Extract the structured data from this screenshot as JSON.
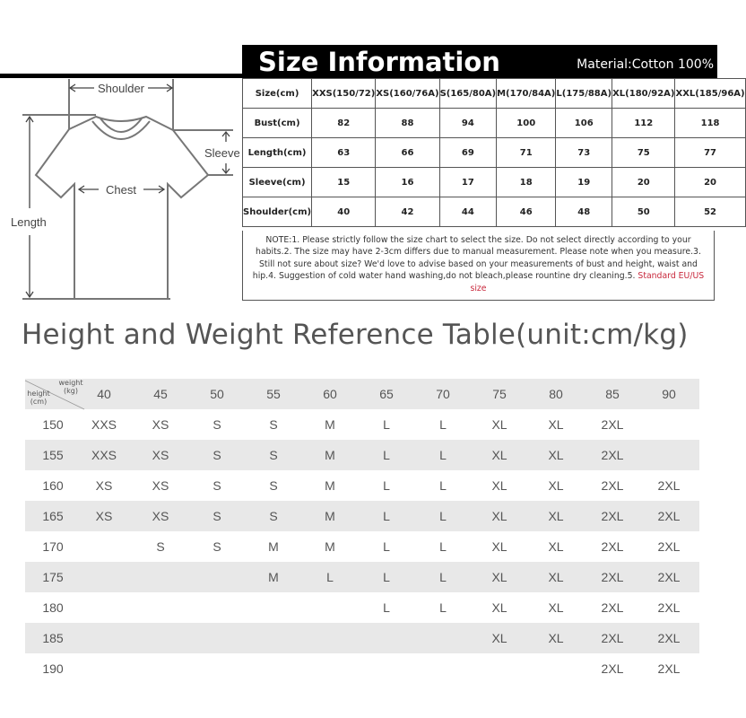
{
  "header": {
    "title": "Size Information",
    "material": "Material:Cotton 100%"
  },
  "diagram": {
    "labels": {
      "shoulder": "Shoulder",
      "chest": "Chest",
      "length": "Length",
      "sleeve": "Sleeve"
    }
  },
  "size_table": {
    "columns": [
      "Size(cm)",
      "XXS(150/72)",
      "XS(160/76A)",
      "S(165/80A)",
      "M(170/84A)",
      "L(175/88A)",
      "XL(180/92A)",
      "XXL(185/96A)"
    ],
    "rows": [
      [
        "Bust(cm)",
        "82",
        "88",
        "94",
        "100",
        "106",
        "112",
        "118"
      ],
      [
        "Length(cm)",
        "63",
        "66",
        "69",
        "71",
        "73",
        "75",
        "77"
      ],
      [
        "Sleeve(cm)",
        "15",
        "16",
        "17",
        "18",
        "19",
        "20",
        "20"
      ],
      [
        "Shoulder(cm)",
        "40",
        "42",
        "44",
        "46",
        "48",
        "50",
        "52"
      ]
    ],
    "note": "NOTE:1. Please strictly follow the size chart to select the size. Do not select directly according to your habits.2. The size may have 2-3cm differs due to manual measurement. Please note when you measure.3. Still not sure about size? We'd love to advise based on your measurements of bust and height, waist and hip.4. Suggestion of cold water hand washing,do not bleach,please rountine dry cleaning.5. ",
    "note_highlight": "Standard EU/US size",
    "highlight_color": "#c8283c"
  },
  "hw_table": {
    "title": "Height and Weight Reference Table(unit:cm/kg)",
    "corner_weight": "weight (kg)",
    "corner_height": "height (cm)",
    "weights": [
      "40",
      "45",
      "50",
      "55",
      "60",
      "65",
      "70",
      "75",
      "80",
      "85",
      "90"
    ],
    "rows": [
      {
        "height": "150",
        "sizes": [
          "XXS",
          "XS",
          "S",
          "S",
          "M",
          "L",
          "L",
          "XL",
          "XL",
          "2XL",
          ""
        ]
      },
      {
        "height": "155",
        "sizes": [
          "XXS",
          "XS",
          "S",
          "S",
          "M",
          "L",
          "L",
          "XL",
          "XL",
          "2XL",
          ""
        ]
      },
      {
        "height": "160",
        "sizes": [
          "XS",
          "XS",
          "S",
          "S",
          "M",
          "L",
          "L",
          "XL",
          "XL",
          "2XL",
          "2XL"
        ]
      },
      {
        "height": "165",
        "sizes": [
          "XS",
          "XS",
          "S",
          "S",
          "M",
          "L",
          "L",
          "XL",
          "XL",
          "2XL",
          "2XL"
        ]
      },
      {
        "height": "170",
        "sizes": [
          "",
          "S",
          "S",
          "M",
          "M",
          "L",
          "L",
          "XL",
          "XL",
          "2XL",
          "2XL"
        ]
      },
      {
        "height": "175",
        "sizes": [
          "",
          "",
          "",
          "M",
          "L",
          "L",
          "L",
          "XL",
          "XL",
          "2XL",
          "2XL"
        ]
      },
      {
        "height": "180",
        "sizes": [
          "",
          "",
          "",
          "",
          "",
          "L",
          "L",
          "XL",
          "XL",
          "2XL",
          "2XL"
        ]
      },
      {
        "height": "185",
        "sizes": [
          "",
          "",
          "",
          "",
          "",
          "",
          "",
          "XL",
          "XL",
          "2XL",
          "2XL"
        ]
      },
      {
        "height": "190",
        "sizes": [
          "",
          "",
          "",
          "",
          "",
          "",
          "",
          "",
          "",
          "2XL",
          "2XL"
        ]
      }
    ]
  }
}
